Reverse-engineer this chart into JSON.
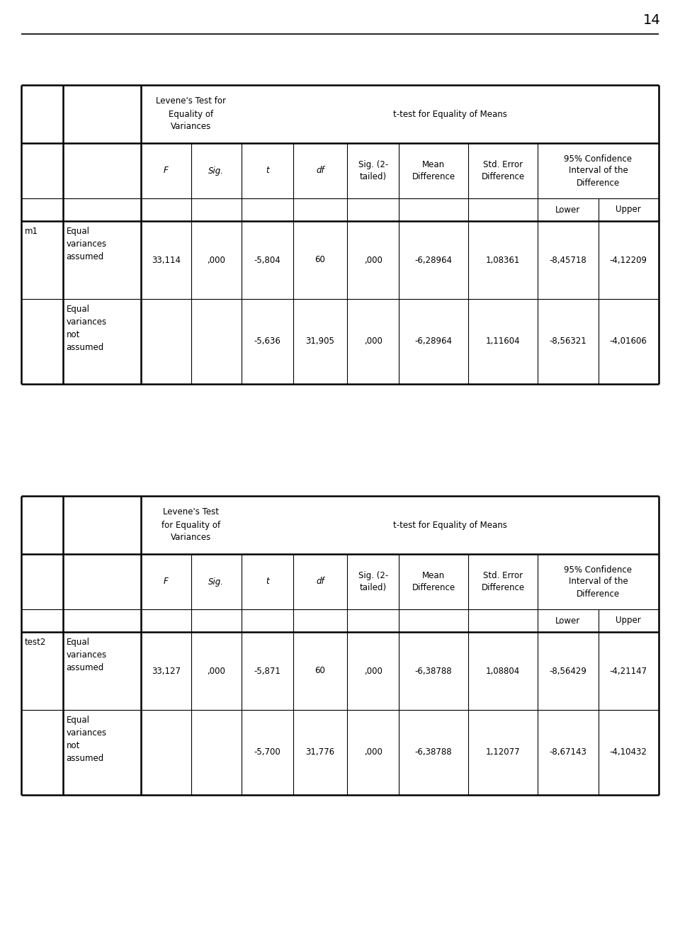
{
  "page_number": "14",
  "table1": {
    "var_name": "m1",
    "levene_header1": "Levene's Test for",
    "levene_header2": "Equality of",
    "levene_header3": "Variances",
    "ttest_header": "t-test for Equality of Means",
    "confidence_header": "95% Confidence\nInterval of the\nDifference",
    "lower_upper": [
      "Lower",
      "Upper"
    ],
    "row1_label1": "Equal",
    "row1_label2": "variances",
    "row1_label3": "assumed",
    "row2_label1": "Equal",
    "row2_label2": "variances",
    "row2_label3": "not",
    "row2_label4": "assumed",
    "row1": [
      "33,114",
      ",000",
      "-5,804",
      "60",
      ",000",
      "-6,28964",
      "1,08361",
      "-8,45718",
      "-4,12209"
    ],
    "row2": [
      "",
      "",
      "-5,636",
      "31,905",
      ",000",
      "-6,28964",
      "1,11604",
      "-8,56321",
      "-4,01606"
    ]
  },
  "table2": {
    "var_name": "test2",
    "levene_header1": "Levene's Test",
    "levene_header2": "for Equality of",
    "levene_header3": "Variances",
    "ttest_header": "t-test for Equality of Means",
    "confidence_header": "95% Confidence\nInterval of the\nDifference",
    "lower_upper": [
      "Lower",
      "Upper"
    ],
    "row1_label1": "Equal",
    "row1_label2": "variances",
    "row1_label3": "assumed",
    "row2_label1": "Equal",
    "row2_label2": "variances",
    "row2_label3": "not",
    "row2_label4": "assumed",
    "row1": [
      "33,127",
      ",000",
      "-5,871",
      "60",
      ",000",
      "-6,38788",
      "1,08804",
      "-8,56429",
      "-4,21147"
    ],
    "row2": [
      "",
      "",
      "-5,700",
      "31,776",
      ",000",
      "-6,38788",
      "1,12077",
      "-8,67143",
      "-4,10432"
    ]
  },
  "bg_color": "#ffffff",
  "text_color": "#000000",
  "line_color": "#000000",
  "font_size": 8.5
}
